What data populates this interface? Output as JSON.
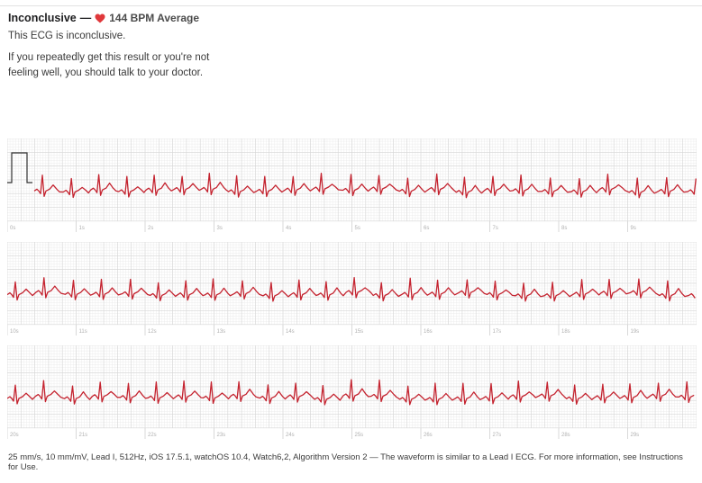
{
  "summary": {
    "classification": "Inconclusive",
    "separator": "—",
    "average_bpm": "144 BPM Average",
    "heart_icon": "heart-icon",
    "accent_color": "#e0383b"
  },
  "result_text": "This ECG is inconclusive.",
  "advice_text": "If you repeatedly get this result or you're not feeling well, you should talk to your doctor.",
  "strips": [
    {
      "ticks": [
        "0s",
        "1s",
        "2s",
        "3s",
        "4s",
        "5s",
        "6s",
        "7s",
        "8s",
        "9s"
      ],
      "calibration": true
    },
    {
      "ticks": [
        "10s",
        "11s",
        "12s",
        "13s",
        "14s",
        "15s",
        "16s",
        "17s",
        "18s",
        "19s"
      ],
      "calibration": false
    },
    {
      "ticks": [
        "20s",
        "21s",
        "22s",
        "23s",
        "24s",
        "25s",
        "26s",
        "27s",
        "28s",
        "29s"
      ],
      "calibration": false
    }
  ],
  "colors": {
    "trace": "#c4232f",
    "grid_minor": "#ececec",
    "grid_major": "#d6d6d6"
  },
  "footer_text": "25 mm/s, 10 mm/mV, Lead I, 512Hz, iOS 17.5.1, watchOS 10.4, Watch6,2, Algorithm Version 2 — The waveform is similar to a Lead I ECG. For more information, see Instructions for Use."
}
